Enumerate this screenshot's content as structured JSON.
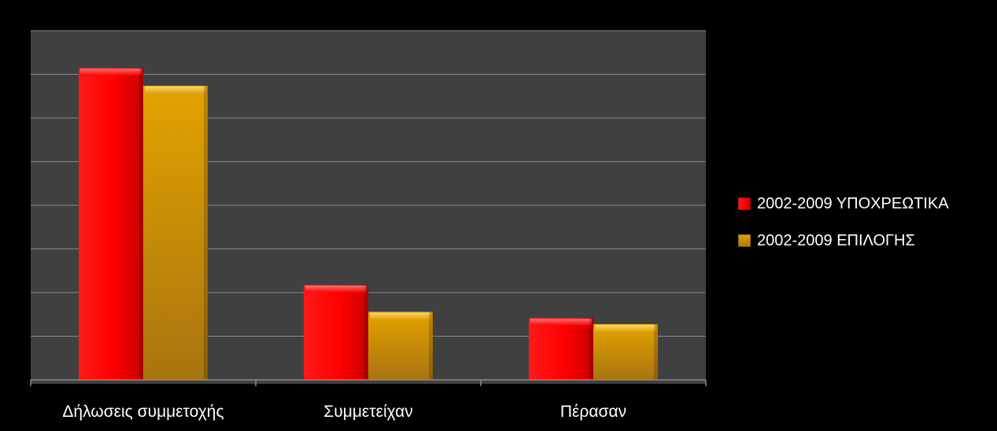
{
  "chart_data": {
    "type": "bar",
    "title": "",
    "xlabel": "",
    "ylabel": "",
    "categories": [
      "Δήλωσεις συμμετοχής",
      "Συμμετείχαν",
      "Πέρασαν"
    ],
    "series": [
      {
        "name": "2002-2009 ΥΠΟΧΡΕΩΤΙΚΑ",
        "values": [
          7.15,
          2.18,
          1.42
        ],
        "color": "#ff0000"
      },
      {
        "name": "2002-2009 ΕΠΙΛΟΓΗΣ",
        "values": [
          6.74,
          1.56,
          1.28
        ],
        "color": "#d89a00"
      }
    ],
    "ylim": [
      0,
      8
    ],
    "y_gridlines": [
      1,
      2,
      3,
      4,
      5,
      6,
      7,
      8
    ],
    "y_tick_labels_shown": false,
    "grid": true,
    "legend_position": "right",
    "plot_background": "#404040",
    "page_background": "#000000",
    "text_color": "#ffffff"
  }
}
